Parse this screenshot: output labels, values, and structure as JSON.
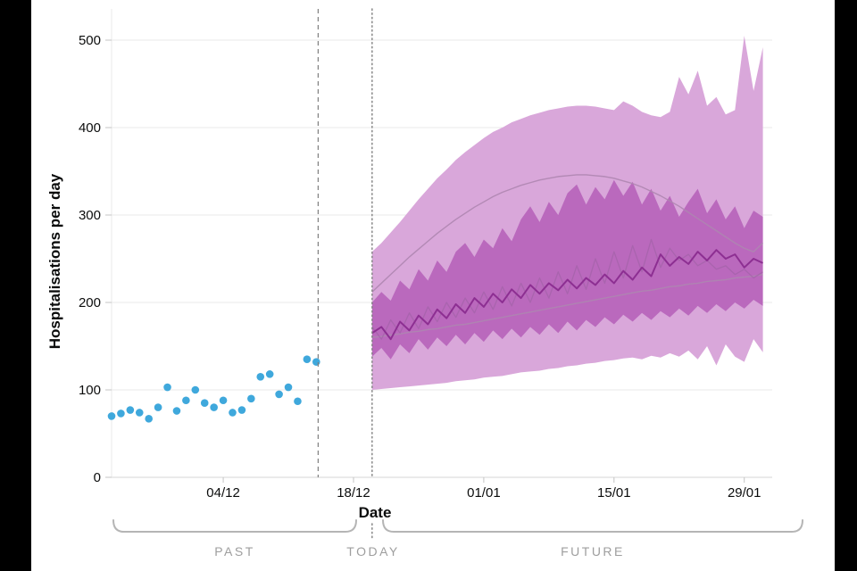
{
  "chart": {
    "ylabel": "Hospitalisations per day",
    "xlabel": "Date",
    "annotations": {
      "past": "PAST",
      "today": "TODAY",
      "future": "FUTURE"
    },
    "colors": {
      "letterbox": "#000000",
      "background": "#ffffff",
      "grid": "#e8e8e8",
      "axis": "#d6d6d6",
      "tick": "#c4c4c4",
      "text": "#0b0c0c",
      "muted_text": "#9e9e9e",
      "marker_line": "#7f7f7f",
      "bracket": "#b5b5b5"
    }
  },
  "chart_data": {
    "type": "area",
    "title": "",
    "xlabel": "Date",
    "ylabel": "Hospitalisations per day",
    "ylim": [
      0,
      500
    ],
    "xlim_days": [
      0,
      71
    ],
    "grid": "horizontal",
    "legend": "none",
    "y_ticks": [
      0,
      100,
      200,
      300,
      400,
      500
    ],
    "x_ticks": [
      {
        "day": 12,
        "label": "04/12"
      },
      {
        "day": 26,
        "label": "18/12"
      },
      {
        "day": 40,
        "label": "01/01"
      },
      {
        "day": 54,
        "label": "15/01"
      },
      {
        "day": 68,
        "label": "29/01"
      }
    ],
    "observed": {
      "name": "observed-hospitalisations",
      "type": "scatter",
      "color": "#3FA8DC",
      "points": [
        [
          0,
          70
        ],
        [
          1,
          73
        ],
        [
          2,
          77
        ],
        [
          3,
          74
        ],
        [
          4,
          67
        ],
        [
          5,
          80
        ],
        [
          6,
          103
        ],
        [
          7,
          76
        ],
        [
          8,
          88
        ],
        [
          9,
          100
        ],
        [
          10,
          85
        ],
        [
          11,
          80
        ],
        [
          12,
          88
        ],
        [
          13,
          74
        ],
        [
          14,
          77
        ],
        [
          15,
          90
        ],
        [
          16,
          115
        ],
        [
          17,
          118
        ],
        [
          18,
          95
        ],
        [
          19,
          103
        ],
        [
          20,
          87
        ],
        [
          21,
          135
        ],
        [
          22,
          132
        ]
      ]
    },
    "forecast": {
      "start_day": 28,
      "bands": [
        {
          "name": "outer-uncertainty-band",
          "color": "#D9A7DA",
          "opacity": 1,
          "upper": [
            258,
            268,
            280,
            292,
            305,
            318,
            330,
            342,
            352,
            363,
            372,
            380,
            388,
            395,
            400,
            406,
            410,
            414,
            417,
            420,
            422,
            424,
            425,
            425,
            424,
            422,
            420,
            430,
            425,
            418,
            414,
            412,
            418,
            458,
            438,
            465,
            425,
            435,
            415,
            420,
            505,
            442,
            492
          ],
          "lower": [
            100,
            101,
            102,
            103,
            104,
            105,
            106,
            107,
            108,
            110,
            111,
            112,
            114,
            115,
            116,
            118,
            120,
            121,
            122,
            124,
            125,
            127,
            128,
            130,
            131,
            133,
            134,
            136,
            137,
            135,
            139,
            137,
            142,
            138,
            145,
            135,
            150,
            128,
            152,
            138,
            132,
            158,
            143
          ]
        },
        {
          "name": "inner-uncertainty-band",
          "color": "#BA69BD",
          "opacity": 1,
          "upper": [
            200,
            212,
            202,
            225,
            215,
            238,
            225,
            248,
            235,
            258,
            268,
            252,
            272,
            262,
            285,
            270,
            295,
            310,
            292,
            315,
            300,
            325,
            335,
            312,
            332,
            318,
            340,
            322,
            338,
            312,
            330,
            305,
            322,
            298,
            315,
            330,
            302,
            318,
            295,
            310,
            285,
            305,
            298
          ],
          "lower": [
            138,
            148,
            135,
            152,
            142,
            158,
            146,
            160,
            150,
            163,
            152,
            165,
            155,
            168,
            158,
            170,
            160,
            172,
            163,
            175,
            165,
            178,
            168,
            180,
            172,
            183,
            175,
            186,
            178,
            188,
            180,
            190,
            183,
            193,
            185,
            196,
            188,
            198,
            190,
            200,
            193,
            203,
            196
          ]
        }
      ],
      "lines": [
        {
          "name": "upper-projection",
          "color": "#AE86B0",
          "width": 1.4,
          "opacity": 0.9,
          "values": [
            212,
            222,
            232,
            242,
            252,
            261,
            270,
            279,
            287,
            295,
            302,
            309,
            315,
            321,
            326,
            330,
            334,
            337,
            340,
            342,
            344,
            345,
            346,
            346,
            345,
            344,
            342,
            339,
            336,
            332,
            327,
            322,
            316,
            310,
            303,
            296,
            289,
            282,
            275,
            268,
            262,
            258,
            268
          ]
        },
        {
          "name": "lower-projection",
          "color": "#AE86B0",
          "width": 1.4,
          "opacity": 0.9,
          "values": [
            160,
            161,
            163,
            164,
            166,
            167,
            169,
            170,
            172,
            174,
            175,
            177,
            179,
            181,
            183,
            185,
            187,
            189,
            191,
            193,
            195,
            197,
            199,
            201,
            203,
            205,
            207,
            209,
            211,
            213,
            214,
            216,
            218,
            219,
            221,
            222,
            224,
            225,
            226,
            228,
            229,
            230,
            232
          ]
        },
        {
          "name": "model-trace",
          "color": "#A263A8",
          "width": 1.3,
          "opacity": 0.7,
          "values": [
            172,
            158,
            180,
            165,
            188,
            170,
            195,
            178,
            200,
            183,
            205,
            188,
            212,
            192,
            218,
            196,
            222,
            200,
            228,
            205,
            235,
            210,
            242,
            215,
            250,
            222,
            258,
            228,
            265,
            235,
            272,
            240,
            262,
            248,
            255,
            242,
            248,
            238,
            242,
            232,
            238,
            228,
            235
          ]
        },
        {
          "name": "median-forecast",
          "color": "#8D2F92",
          "width": 2,
          "opacity": 1,
          "values": [
            165,
            172,
            158,
            178,
            168,
            185,
            175,
            192,
            182,
            198,
            188,
            205,
            195,
            210,
            200,
            215,
            205,
            220,
            210,
            222,
            214,
            226,
            216,
            228,
            220,
            232,
            222,
            236,
            226,
            240,
            230,
            255,
            242,
            252,
            244,
            258,
            248,
            260,
            250,
            255,
            240,
            250,
            245
          ]
        }
      ]
    },
    "markers": {
      "dashed_line_day": 22.2,
      "dotted_line_day": 28
    }
  }
}
